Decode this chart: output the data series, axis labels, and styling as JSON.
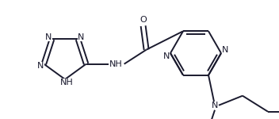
{
  "bg_color": "#ffffff",
  "line_color": "#1a1a2e",
  "line_width": 1.4,
  "font_size": 8.0,
  "fig_width": 3.52,
  "fig_height": 1.5,
  "dpi": 100,
  "xlim": [
    0,
    352
  ],
  "ylim": [
    0,
    150
  ]
}
